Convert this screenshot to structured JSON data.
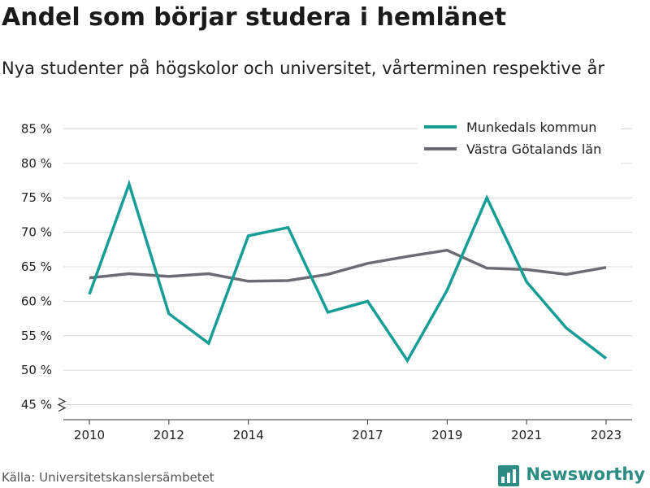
{
  "header": {
    "title": "Andel som börjar studera i hemlänet",
    "subtitle": "Nya studenter på högskolor och universitet, vårterminen respektive år"
  },
  "footer": {
    "source": "Källa: Universitetskanslersämbetet",
    "brand": "Newsworthy",
    "brand_icon": "bar-chart-logo-icon"
  },
  "colors": {
    "munkedal": "#169e96",
    "vastra_gotaland": "#6b6b73",
    "grid": "#d9d9d9",
    "brand": "#2a8c82"
  },
  "chart_data": {
    "type": "line",
    "x": [
      2010,
      2011,
      2012,
      2013,
      2014,
      2015,
      2016,
      2017,
      2018,
      2019,
      2020,
      2021,
      2022,
      2023
    ],
    "x_tick_values": [
      2010,
      2012,
      2014,
      2017,
      2019,
      2021,
      2023
    ],
    "x_tick_labels": [
      "2010",
      "2012",
      "2014",
      "2017",
      "2019",
      "2021",
      "2023"
    ],
    "y_tick_values": [
      45,
      50,
      55,
      60,
      65,
      70,
      75,
      80,
      85
    ],
    "y_tick_labels": [
      "45 %",
      "50 %",
      "55 %",
      "60 %",
      "65 %",
      "70 %",
      "75 %",
      "80 %",
      "85 %"
    ],
    "ylim": [
      44,
      86
    ],
    "y_axis_break": true,
    "grid": true,
    "legend_position": "top-right",
    "series": [
      {
        "name": "Munkedals kommun",
        "color": "#169e96",
        "values": [
          61.0,
          77.0,
          58.2,
          53.9,
          69.5,
          70.7,
          58.4,
          60.0,
          51.4,
          61.6,
          75.0,
          62.8,
          56.1,
          51.7
        ]
      },
      {
        "name": "Västra Götalands län",
        "color": "#6b6b73",
        "values": [
          63.4,
          64.0,
          63.6,
          64.0,
          62.9,
          63.0,
          63.9,
          65.5,
          66.5,
          67.4,
          64.8,
          64.6,
          63.9,
          64.9
        ]
      }
    ]
  }
}
